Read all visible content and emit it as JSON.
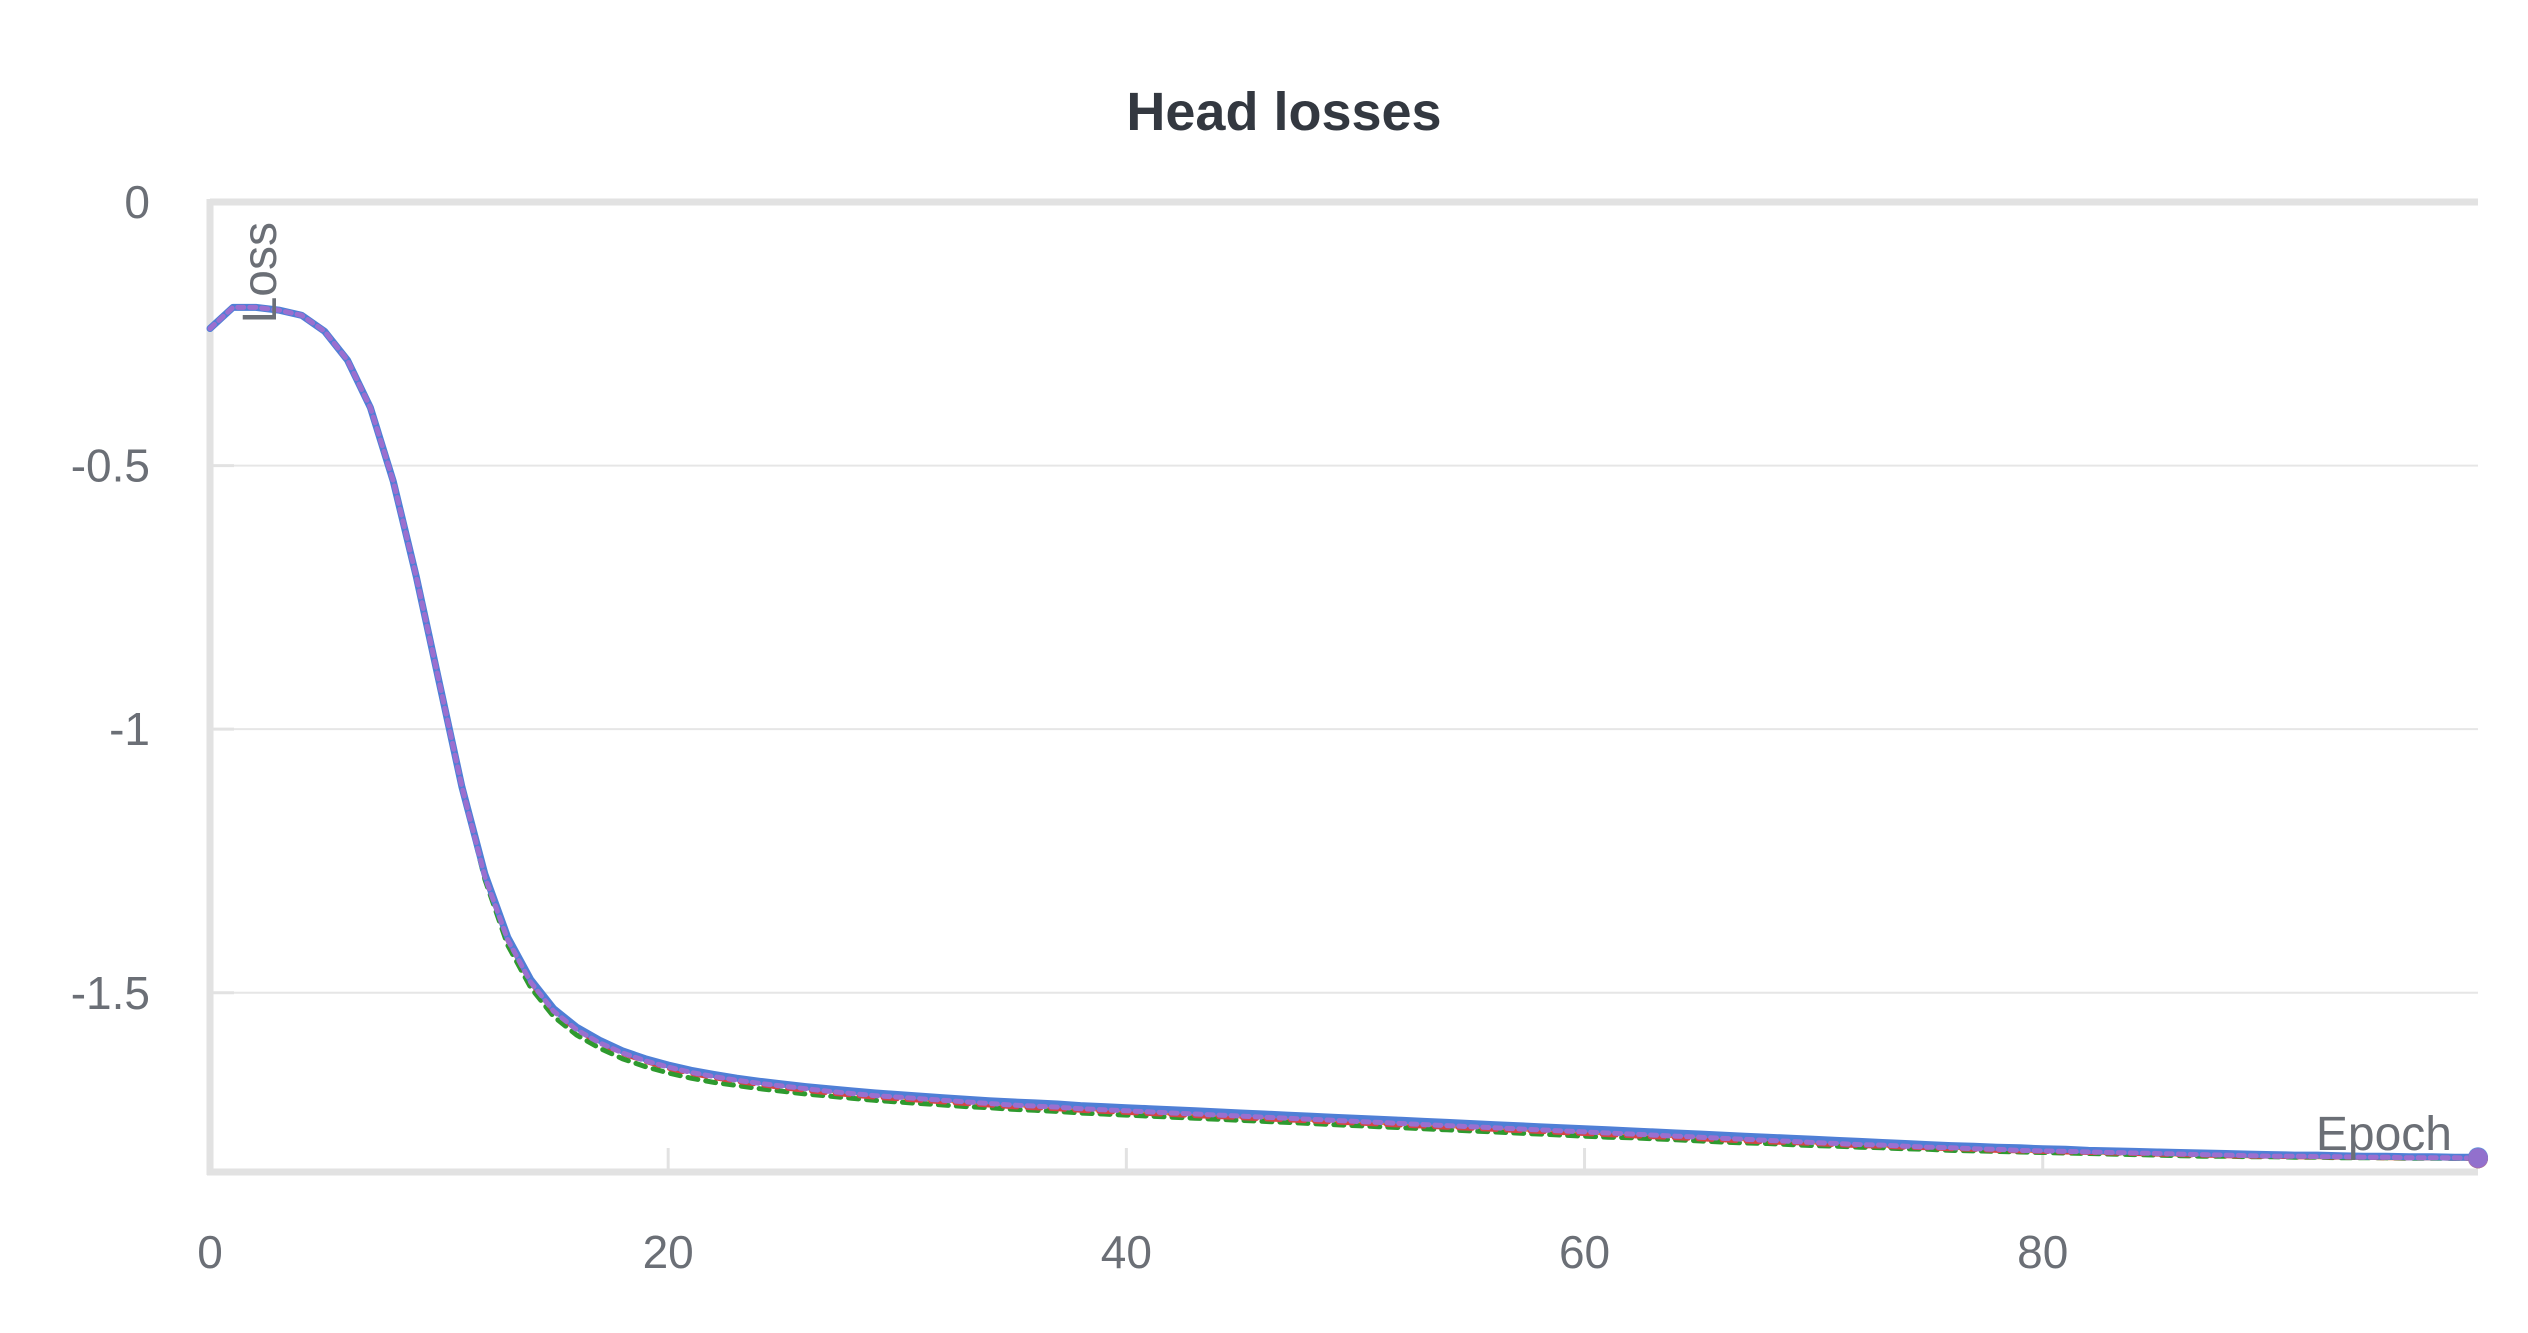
{
  "chart_data": {
    "type": "line",
    "title": "Head losses",
    "xlabel": "Epoch",
    "ylabel": "Loss",
    "xlim": [
      0,
      99
    ],
    "ylim": [
      -1.84,
      0
    ],
    "x_ticks": [
      0,
      20,
      40,
      60,
      80
    ],
    "x_tick_labels": [
      "0",
      "20",
      "40",
      "60",
      "80"
    ],
    "y_ticks": [
      0,
      -0.5,
      -1,
      -1.5
    ],
    "y_tick_labels": [
      "0",
      "-0.5",
      "-1",
      "-1.5"
    ],
    "grid": true,
    "legend": false,
    "x": [
      0,
      1,
      2,
      3,
      4,
      5,
      6,
      7,
      8,
      9,
      10,
      11,
      12,
      13,
      14,
      15,
      16,
      17,
      18,
      19,
      20,
      21,
      22,
      23,
      24,
      25,
      26,
      27,
      28,
      29,
      30,
      31,
      32,
      33,
      34,
      35,
      36,
      37,
      38,
      39,
      40,
      41,
      42,
      43,
      44,
      45,
      46,
      47,
      48,
      49,
      50,
      51,
      52,
      53,
      54,
      55,
      56,
      57,
      58,
      59,
      60,
      61,
      62,
      63,
      64,
      65,
      66,
      67,
      68,
      69,
      70,
      71,
      72,
      73,
      74,
      75,
      76,
      77,
      78,
      79,
      80,
      81,
      82,
      83,
      84,
      85,
      86,
      87,
      88,
      89,
      90,
      91,
      92,
      93,
      94,
      95,
      96,
      97,
      98,
      99
    ],
    "series": [
      {
        "color": "#e57d3c",
        "values": [
          -0.24,
          -0.2,
          -0.2,
          -0.205,
          -0.215,
          -0.245,
          -0.3,
          -0.39,
          -0.53,
          -0.71,
          -0.91,
          -1.11,
          -1.28,
          -1.4,
          -1.48,
          -1.53,
          -1.565,
          -1.59,
          -1.61,
          -1.625,
          -1.638,
          -1.648,
          -1.656,
          -1.663,
          -1.669,
          -1.675,
          -1.68,
          -1.685,
          -1.689,
          -1.693,
          -1.697,
          -1.7,
          -1.703,
          -1.706,
          -1.709,
          -1.712,
          -1.714,
          -1.716,
          -1.719,
          -1.721,
          -1.723,
          -1.726,
          -1.728,
          -1.73,
          -1.732,
          -1.734,
          -1.736,
          -1.738,
          -1.74,
          -1.742,
          -1.744,
          -1.746,
          -1.748,
          -1.75,
          -1.752,
          -1.754,
          -1.756,
          -1.758,
          -1.76,
          -1.762,
          -1.764,
          -1.766,
          -1.768,
          -1.77,
          -1.771,
          -1.773,
          -1.775,
          -1.777,
          -1.779,
          -1.781,
          -1.783,
          -1.785,
          -1.787,
          -1.789,
          -1.79,
          -1.792,
          -1.793,
          -1.795,
          -1.797,
          -1.798,
          -1.8,
          -1.801,
          -1.802,
          -1.803,
          -1.804,
          -1.805,
          -1.806,
          -1.807,
          -1.808,
          -1.809,
          -1.81,
          -1.811,
          -1.811,
          -1.812,
          -1.812,
          -1.813,
          -1.813,
          -1.813,
          -1.814,
          -1.814
        ]
      },
      {
        "color": "#2e9a2e",
        "values": [
          -0.24,
          -0.2,
          -0.2,
          -0.205,
          -0.215,
          -0.245,
          -0.3,
          -0.39,
          -0.53,
          -0.71,
          -0.91,
          -1.11,
          -1.285,
          -1.41,
          -1.49,
          -1.545,
          -1.58,
          -1.605,
          -1.625,
          -1.64,
          -1.652,
          -1.662,
          -1.67,
          -1.676,
          -1.682,
          -1.687,
          -1.692,
          -1.696,
          -1.7,
          -1.704,
          -1.707,
          -1.71,
          -1.713,
          -1.716,
          -1.718,
          -1.721,
          -1.723,
          -1.725,
          -1.728,
          -1.73,
          -1.732,
          -1.734,
          -1.736,
          -1.738,
          -1.74,
          -1.742,
          -1.744,
          -1.746,
          -1.748,
          -1.75,
          -1.752,
          -1.754,
          -1.756,
          -1.758,
          -1.76,
          -1.762,
          -1.764,
          -1.766,
          -1.768,
          -1.77,
          -1.772,
          -1.774,
          -1.775,
          -1.777,
          -1.779,
          -1.781,
          -1.783,
          -1.785,
          -1.786,
          -1.788,
          -1.79,
          -1.791,
          -1.793,
          -1.794,
          -1.796,
          -1.797,
          -1.799,
          -1.8,
          -1.801,
          -1.802,
          -1.803,
          -1.804,
          -1.805,
          -1.806,
          -1.807,
          -1.808,
          -1.809,
          -1.81,
          -1.81,
          -1.811,
          -1.811,
          -1.812,
          -1.812,
          -1.813,
          -1.813,
          -1.813,
          -1.814,
          -1.814,
          -1.814,
          -1.814
        ]
      },
      {
        "color": "#d64545",
        "values": [
          -0.24,
          -0.2,
          -0.2,
          -0.205,
          -0.215,
          -0.245,
          -0.3,
          -0.39,
          -0.53,
          -0.71,
          -0.91,
          -1.11,
          -1.28,
          -1.4,
          -1.48,
          -1.535,
          -1.57,
          -1.595,
          -1.615,
          -1.63,
          -1.643,
          -1.653,
          -1.661,
          -1.668,
          -1.674,
          -1.68,
          -1.685,
          -1.69,
          -1.694,
          -1.698,
          -1.701,
          -1.704,
          -1.707,
          -1.71,
          -1.713,
          -1.716,
          -1.718,
          -1.72,
          -1.723,
          -1.725,
          -1.727,
          -1.729,
          -1.731,
          -1.733,
          -1.735,
          -1.737,
          -1.739,
          -1.741,
          -1.743,
          -1.745,
          -1.747,
          -1.749,
          -1.751,
          -1.753,
          -1.755,
          -1.757,
          -1.759,
          -1.761,
          -1.763,
          -1.765,
          -1.767,
          -1.769,
          -1.771,
          -1.773,
          -1.775,
          -1.777,
          -1.779,
          -1.781,
          -1.783,
          -1.784,
          -1.786,
          -1.788,
          -1.79,
          -1.791,
          -1.793,
          -1.794,
          -1.796,
          -1.797,
          -1.799,
          -1.8,
          -1.801,
          -1.802,
          -1.803,
          -1.804,
          -1.805,
          -1.806,
          -1.807,
          -1.808,
          -1.809,
          -1.81,
          -1.81,
          -1.811,
          -1.811,
          -1.812,
          -1.812,
          -1.813,
          -1.813,
          -1.813,
          -1.814,
          -1.814
        ]
      },
      {
        "color": "#4f7fd6",
        "values": [
          -0.24,
          -0.2,
          -0.2,
          -0.205,
          -0.215,
          -0.245,
          -0.3,
          -0.39,
          -0.53,
          -0.71,
          -0.91,
          -1.11,
          -1.275,
          -1.395,
          -1.475,
          -1.53,
          -1.565,
          -1.59,
          -1.61,
          -1.625,
          -1.637,
          -1.647,
          -1.655,
          -1.662,
          -1.668,
          -1.673,
          -1.678,
          -1.682,
          -1.686,
          -1.69,
          -1.693,
          -1.696,
          -1.699,
          -1.702,
          -1.705,
          -1.707,
          -1.709,
          -1.711,
          -1.714,
          -1.716,
          -1.718,
          -1.72,
          -1.722,
          -1.724,
          -1.726,
          -1.728,
          -1.73,
          -1.732,
          -1.734,
          -1.736,
          -1.738,
          -1.74,
          -1.742,
          -1.744,
          -1.746,
          -1.748,
          -1.75,
          -1.752,
          -1.754,
          -1.756,
          -1.758,
          -1.76,
          -1.762,
          -1.764,
          -1.766,
          -1.768,
          -1.77,
          -1.772,
          -1.774,
          -1.776,
          -1.778,
          -1.78,
          -1.782,
          -1.784,
          -1.786,
          -1.788,
          -1.79,
          -1.791,
          -1.793,
          -1.794,
          -1.796,
          -1.797,
          -1.799,
          -1.8,
          -1.801,
          -1.802,
          -1.803,
          -1.804,
          -1.805,
          -1.806,
          -1.807,
          -1.808,
          -1.808,
          -1.809,
          -1.81,
          -1.81,
          -1.811,
          -1.811,
          -1.812,
          -1.812
        ]
      },
      {
        "color": "#9b6fcf",
        "values": [
          -0.24,
          -0.2,
          -0.2,
          -0.205,
          -0.215,
          -0.245,
          -0.3,
          -0.39,
          -0.53,
          -0.71,
          -0.91,
          -1.11,
          -1.28,
          -1.4,
          -1.48,
          -1.535,
          -1.57,
          -1.595,
          -1.614,
          -1.629,
          -1.641,
          -1.651,
          -1.659,
          -1.666,
          -1.672,
          -1.677,
          -1.682,
          -1.687,
          -1.691,
          -1.695,
          -1.698,
          -1.701,
          -1.704,
          -1.707,
          -1.71,
          -1.713,
          -1.715,
          -1.717,
          -1.72,
          -1.722,
          -1.724,
          -1.726,
          -1.728,
          -1.73,
          -1.732,
          -1.734,
          -1.736,
          -1.738,
          -1.74,
          -1.742,
          -1.744,
          -1.746,
          -1.748,
          -1.75,
          -1.752,
          -1.754,
          -1.756,
          -1.758,
          -1.76,
          -1.762,
          -1.764,
          -1.766,
          -1.768,
          -1.77,
          -1.772,
          -1.774,
          -1.776,
          -1.778,
          -1.78,
          -1.782,
          -1.784,
          -1.786,
          -1.788,
          -1.789,
          -1.791,
          -1.793,
          -1.794,
          -1.796,
          -1.797,
          -1.799,
          -1.8,
          -1.801,
          -1.802,
          -1.803,
          -1.804,
          -1.805,
          -1.806,
          -1.807,
          -1.808,
          -1.809,
          -1.81,
          -1.81,
          -1.811,
          -1.811,
          -1.812,
          -1.812,
          -1.813,
          -1.813,
          -1.813,
          -1.814
        ]
      }
    ]
  }
}
